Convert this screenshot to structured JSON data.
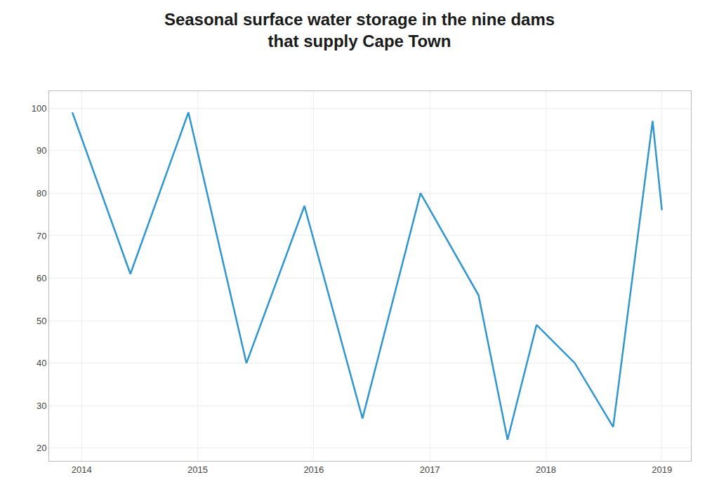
{
  "chart_data": {
    "type": "line",
    "title": "Seasonal surface water storage in the nine dams\nthat supply Cape Town",
    "x": [
      2013.92,
      2014.42,
      2014.92,
      2015.42,
      2015.92,
      2016.42,
      2016.92,
      2017.42,
      2017.67,
      2017.92,
      2018.25,
      2018.58,
      2018.92,
      2019.0
    ],
    "values": [
      99,
      61,
      99,
      40,
      77,
      27,
      80,
      56,
      22,
      49,
      40,
      25,
      97,
      76
    ],
    "color": "#2f96d0",
    "xlim": [
      2013.72,
      2019.25
    ],
    "xticks": [
      2014,
      2015,
      2016,
      2017,
      2018,
      2019
    ],
    "ylim": [
      17,
      104
    ],
    "yticks": [
      20,
      30,
      40,
      50,
      60,
      70,
      80,
      90,
      100
    ],
    "grid": true
  }
}
